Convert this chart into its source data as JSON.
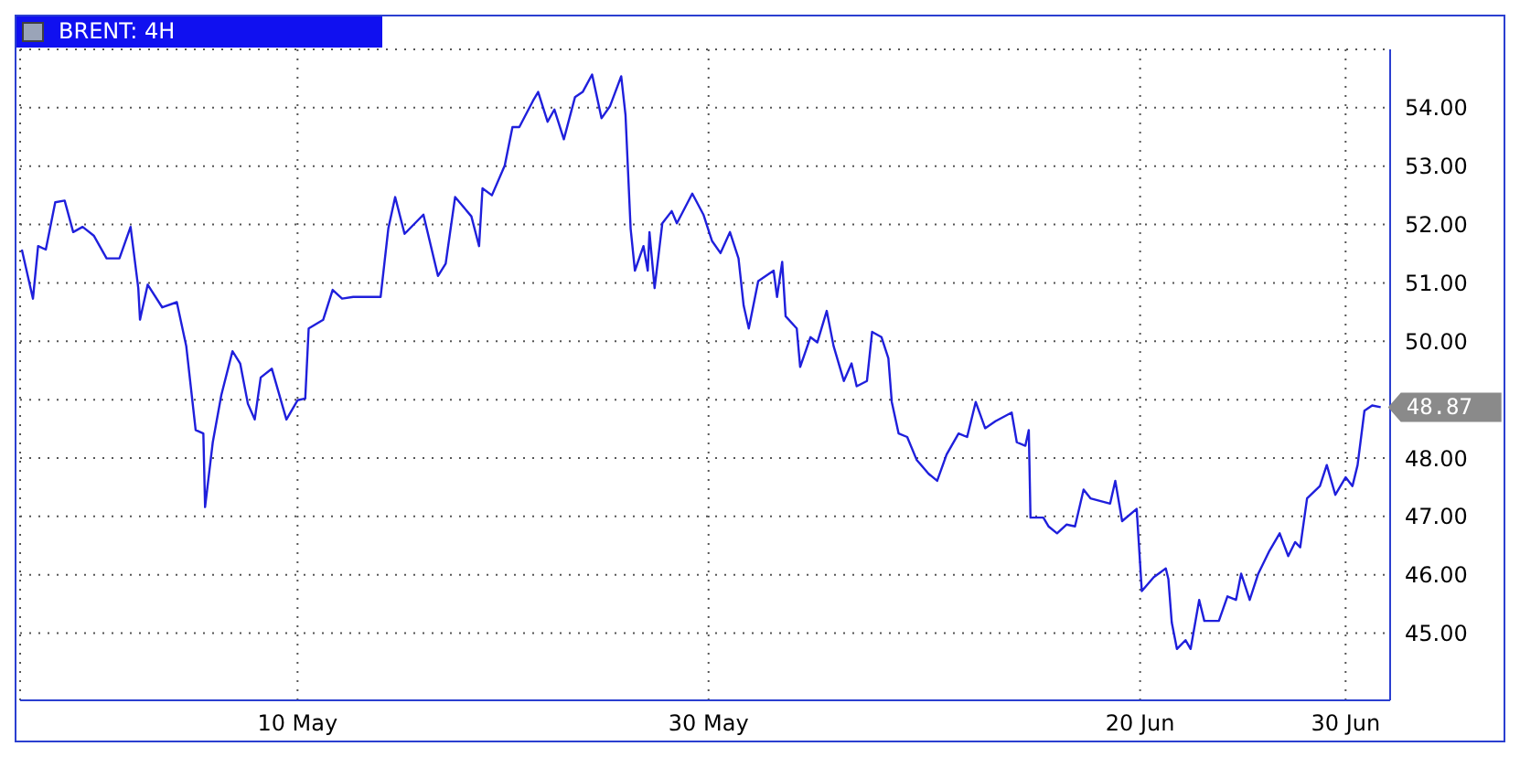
{
  "chart_data": {
    "type": "line",
    "title": "BRENT: 4H",
    "x": [
      "--04-26T14:00",
      "--04-27T03:00",
      "--04-27T09:00",
      "--04-27T18:00",
      "--04-28T05:00",
      "--04-28T16:00",
      "--04-29T02:00",
      "--04-29T13:00",
      "--04-30T02:00",
      "--04-30T17:00",
      "--05-01T08:00",
      "--05-01T21:00",
      "--05-02T06:00",
      "--05-02T08:00",
      "--05-02T17:00",
      "--05-03T10:00",
      "--05-04T03:00",
      "--05-04T14:00",
      "--05-05T01:00",
      "--05-05T10:00",
      "--05-05T12:00",
      "--05-05T21:00",
      "--05-06T07:00",
      "--05-06T20:00",
      "--05-07T05:00",
      "--05-07T14:00",
      "--05-07T22:00",
      "--05-08T05:00",
      "--05-08T18:00",
      "--05-09T11:00",
      "--05-10T00:00",
      "--05-10T09:00",
      "--05-10T13:00",
      "--05-11T06:00",
      "--05-11T17:00",
      "--05-12T04:00",
      "--05-12T17:00",
      "--05-13T12:00",
      "--05-14T01:00",
      "--05-14T10:00",
      "--05-14T18:00",
      "--05-15T05:00",
      "--05-16T03:00",
      "--05-16T20:00",
      "--05-17T05:00",
      "--05-17T16:00",
      "--05-18T11:00",
      "--05-18T20:00",
      "--05-19T00:00",
      "--05-19T11:00",
      "--05-20T02:00",
      "--05-20T11:00",
      "--05-20T19:00",
      "--05-21T11:00",
      "--05-21T17:00",
      "--05-22T04:00",
      "--05-22T12:00",
      "--05-22T23:00",
      "--05-23T12:00",
      "--05-23T21:00",
      "--05-24T08:00",
      "--05-24T19:00",
      "--05-25T05:00",
      "--05-25T18:00",
      "--05-25T23:00",
      "--05-26T05:00",
      "--05-26T10:00",
      "--05-26T20:00",
      "--05-27T01:00",
      "--05-27T03:00",
      "--05-27T09:00",
      "--05-27T18:00",
      "--05-28T05:00",
      "--05-28T11:00",
      "--05-29T05:00",
      "--05-29T18:00",
      "--05-30T04:00",
      "--05-30T14:00",
      "--05-31T01:00",
      "--05-31T11:00",
      "--05-31T17:00",
      "--05-31T23:00",
      "--06-01T10:00",
      "--06-02T04:00",
      "--06-02T08:00",
      "--06-02T14:00",
      "--06-02T18:00",
      "--06-03T07:00",
      "--06-03T11:00",
      "--06-03T23:00",
      "--06-04T07:00",
      "--06-04T18:00",
      "--06-05T02:00",
      "--06-05T14:00",
      "--06-05T23:00",
      "--06-06T05:00",
      "--06-06T17:00",
      "--06-06T23:00",
      "--06-07T10:00",
      "--06-07T18:00",
      "--06-07T22:00",
      "--06-08T06:00",
      "--06-08T16:00",
      "--06-09T03:00",
      "--06-09T17:00",
      "--06-10T03:00",
      "--06-10T14:00",
      "--06-11T04:00",
      "--06-11T14:00",
      "--06-12T00:00",
      "--06-12T11:00",
      "--06-12T23:00",
      "--06-13T18:00",
      "--06-14T00:00",
      "--06-14T10:00",
      "--06-14T14:00",
      "--06-14T16:00",
      "--06-15T07:00",
      "--06-15T13:00",
      "--06-15T23:00",
      "--06-16T10:00",
      "--06-16T20:00",
      "--06-17T06:00",
      "--06-17T14:00",
      "--06-18T13:00",
      "--06-18T19:00",
      "--06-19T03:00",
      "--06-19T20:00",
      "--06-20T02:00",
      "--06-20T16:00",
      "--06-21T06:00",
      "--06-21T09:00",
      "--06-21T13:00",
      "--06-21T19:00",
      "--06-22T05:00",
      "--06-22T11:00",
      "--06-22T21:00",
      "--06-23T03:00",
      "--06-23T20:00",
      "--06-24T06:00",
      "--06-24T16:00",
      "--06-24T22:00",
      "--06-25T08:00",
      "--06-25T18:00",
      "--06-26T07:00",
      "--06-26T19:00",
      "--06-27T05:00",
      "--06-27T13:00",
      "--06-27T19:00",
      "--06-28T03:00",
      "--06-28T18:00",
      "--06-29T02:00",
      "--06-29T12:00",
      "--06-30T00:00",
      "--06-30T08:00",
      "--06-30T14:00",
      "--06-30T22:00",
      "--07-01T07:00",
      "--07-01T17:00"
    ],
    "series": [
      {
        "color": "#1f1fdc",
        "values": [
          51.57,
          50.73,
          51.63,
          51.57,
          52.38,
          52.41,
          51.87,
          51.96,
          51.81,
          51.42,
          51.42,
          51.96,
          50.91,
          50.37,
          50.97,
          50.58,
          50.67,
          49.92,
          48.48,
          48.42,
          47.16,
          48.27,
          49.08,
          49.83,
          49.62,
          48.93,
          48.66,
          49.38,
          49.53,
          48.66,
          48.99,
          49.02,
          50.22,
          50.37,
          50.88,
          50.73,
          50.76,
          50.76,
          50.76,
          51.93,
          52.47,
          51.84,
          52.17,
          51.12,
          51.33,
          52.47,
          52.14,
          51.63,
          52.62,
          52.5,
          53.01,
          53.67,
          53.67,
          54.12,
          54.27,
          53.76,
          53.97,
          53.46,
          54.18,
          54.27,
          54.57,
          53.82,
          54.03,
          54.54,
          53.88,
          51.93,
          51.21,
          51.63,
          51.21,
          51.87,
          50.91,
          52.02,
          52.23,
          52.02,
          52.53,
          52.17,
          51.72,
          51.51,
          51.87,
          51.42,
          50.61,
          50.22,
          51.03,
          51.21,
          50.76,
          51.36,
          50.43,
          50.22,
          49.56,
          50.07,
          49.98,
          50.52,
          49.92,
          49.32,
          49.62,
          49.23,
          49.32,
          50.16,
          50.07,
          49.71,
          48.96,
          48.42,
          48.36,
          47.97,
          47.73,
          47.61,
          48.06,
          48.42,
          48.36,
          48.96,
          48.51,
          48.63,
          48.78,
          48.27,
          48.21,
          48.48,
          46.98,
          46.98,
          46.83,
          46.71,
          46.86,
          46.83,
          47.46,
          47.31,
          47.22,
          47.61,
          46.92,
          47.13,
          45.72,
          45.96,
          46.11,
          45.93,
          45.18,
          44.73,
          44.88,
          44.73,
          45.57,
          45.21,
          45.21,
          45.63,
          45.57,
          46.02,
          45.57,
          46.02,
          46.41,
          46.71,
          46.32,
          46.56,
          46.47,
          47.31,
          47.52,
          47.88,
          47.37,
          47.67,
          47.52,
          47.88,
          48.81,
          48.9,
          48.87
        ]
      }
    ],
    "xlim": [
      "--04-26T12:00",
      "--07-02T04:00"
    ],
    "xticks": [
      {
        "value": "--05-10T00:00",
        "label": "10 May"
      },
      {
        "value": "--05-30T00:00",
        "label": "30 May"
      },
      {
        "value": "--06-20T00:00",
        "label": "20 Jun"
      },
      {
        "value": "--06-30T00:00",
        "label": "30 Jun"
      }
    ],
    "ylim": [
      43.85,
      55
    ],
    "yticks": [
      {
        "value": 45,
        "label": "45.00"
      },
      {
        "value": 46,
        "label": "46.00"
      },
      {
        "value": 47,
        "label": "47.00"
      },
      {
        "value": 48,
        "label": "48.00"
      },
      {
        "value": 49,
        "label": null
      },
      {
        "value": 50,
        "label": "50.00"
      },
      {
        "value": 51,
        "label": "51.00"
      },
      {
        "value": 52,
        "label": "52.00"
      },
      {
        "value": 53,
        "label": "53.00"
      },
      {
        "value": 54,
        "label": "54.00"
      }
    ],
    "annotations": [
      {
        "text": "48.87",
        "x": "--07-01T17:00",
        "y": 48.87
      }
    ],
    "grid": true,
    "legend": false,
    "marker": "none",
    "line_style": "solid"
  }
}
